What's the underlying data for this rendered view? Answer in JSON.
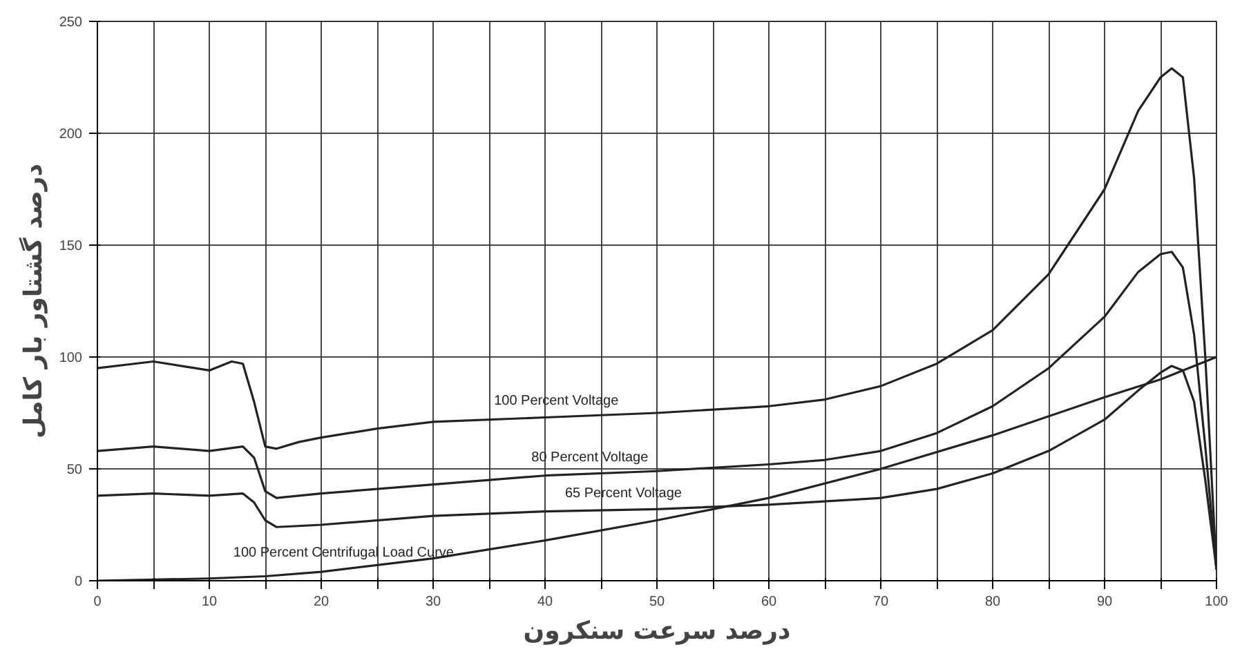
{
  "chart_data": {
    "type": "line",
    "xlabel": "درصد سرعت سنکرون",
    "ylabel": "درصد گشتاور بار کامل",
    "xlim": [
      0,
      100
    ],
    "ylim": [
      0,
      250
    ],
    "xticks": [
      0,
      {
        "value": 5,
        "label": null
      },
      10,
      {
        "value": 15,
        "label": null
      },
      20,
      {
        "value": 25,
        "label": null
      },
      30,
      {
        "value": 35,
        "label": null
      },
      40,
      {
        "value": 45,
        "label": null
      },
      50,
      {
        "value": 55,
        "label": null
      },
      60,
      {
        "value": 65,
        "label": null
      },
      70,
      {
        "value": 75,
        "label": null
      },
      80,
      {
        "value": 85,
        "label": null
      },
      90,
      {
        "value": 95,
        "label": null
      },
      100
    ],
    "yticks": [
      0,
      50,
      100,
      150,
      200,
      250
    ],
    "grid": true,
    "marker": "none",
    "line_style": "solid",
    "series": [
      {
        "name": "100 Percent Voltage",
        "color": "#222222",
        "x": [
          0,
          5,
          10,
          12,
          13,
          14,
          15,
          16,
          18,
          20,
          25,
          30,
          40,
          50,
          60,
          65,
          70,
          75,
          80,
          85,
          90,
          93,
          95,
          96,
          97,
          98,
          99,
          100
        ],
        "values": [
          95,
          98,
          94,
          98,
          97,
          80,
          60,
          59,
          62,
          64,
          68,
          71,
          73,
          75,
          78,
          81,
          87,
          97,
          112,
          137,
          175,
          210,
          225,
          229,
          225,
          180,
          100,
          5
        ]
      },
      {
        "name": "80 Percent Voltage",
        "color": "#222222",
        "x": [
          0,
          5,
          10,
          13,
          14,
          15,
          16,
          20,
          30,
          40,
          50,
          60,
          65,
          70,
          75,
          80,
          85,
          90,
          93,
          95,
          96,
          97,
          98,
          99,
          100
        ],
        "values": [
          58,
          60,
          58,
          60,
          55,
          40,
          37,
          39,
          43,
          47,
          49,
          52,
          54,
          58,
          66,
          78,
          95,
          118,
          138,
          146,
          147,
          140,
          110,
          60,
          5
        ]
      },
      {
        "name": "65 Percent Voltage",
        "color": "#222222",
        "x": [
          0,
          5,
          10,
          13,
          14,
          15,
          16,
          20,
          30,
          40,
          50,
          60,
          70,
          75,
          80,
          85,
          90,
          93,
          95,
          96,
          97,
          98,
          99,
          100
        ],
        "values": [
          38,
          39,
          38,
          39,
          35,
          27,
          24,
          25,
          29,
          31,
          32,
          34,
          37,
          41,
          48,
          58,
          72,
          85,
          93,
          96,
          94,
          80,
          45,
          5
        ]
      },
      {
        "name": "100 Percent Centrifugal Load Curve",
        "color": "#222222",
        "x": [
          0,
          10,
          15,
          20,
          30,
          40,
          50,
          60,
          70,
          80,
          90,
          95,
          100
        ],
        "values": [
          0,
          1,
          2,
          4,
          10,
          18,
          27,
          37,
          50,
          65,
          82,
          90,
          100
        ]
      }
    ]
  }
}
